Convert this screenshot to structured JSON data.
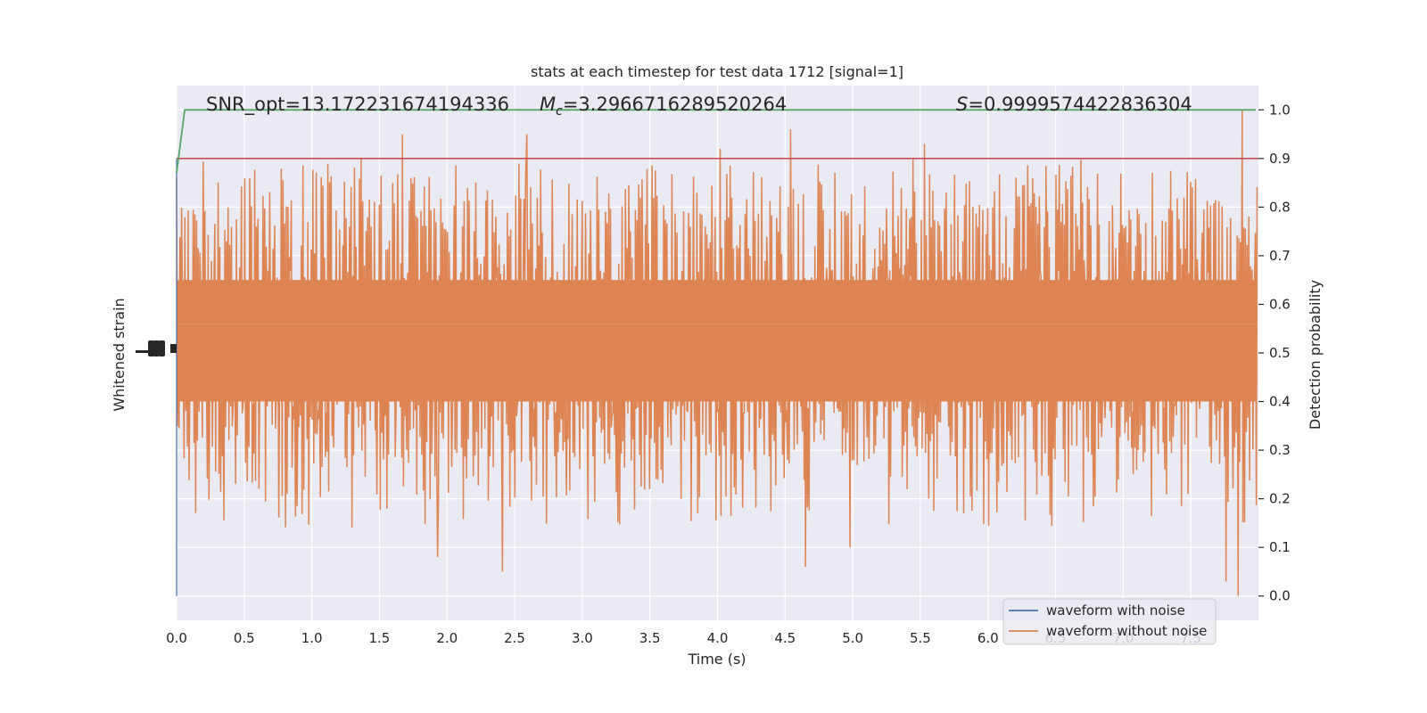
{
  "chart_data": {
    "type": "line",
    "title": "stats at each timestep for test data 1712 [signal=1]",
    "xlabel": "Time (s)",
    "ylabel_left": "Whitened strain",
    "ylabel_right": "Detection probability",
    "xlim": [
      0.0,
      8.0
    ],
    "ylim_right": [
      -0.05,
      1.05
    ],
    "x_ticks": [
      "0.0",
      "0.5",
      "1.0",
      "1.5",
      "2.0",
      "2.5",
      "3.0",
      "3.5",
      "4.0",
      "4.5",
      "5.0",
      "5.5",
      "6.0",
      "6.5",
      "7.0",
      "7.5"
    ],
    "x_tick_values": [
      0.0,
      0.5,
      1.0,
      1.5,
      2.0,
      2.5,
      3.0,
      3.5,
      4.0,
      4.5,
      5.0,
      5.5,
      6.0,
      6.5,
      7.0,
      7.5
    ],
    "y_ticks_right": [
      "0.0",
      "0.1",
      "0.2",
      "0.3",
      "0.4",
      "0.5",
      "0.6",
      "0.7",
      "0.8",
      "0.9",
      "1.0"
    ],
    "y_tick_values_right": [
      0.0,
      0.1,
      0.2,
      0.3,
      0.4,
      0.5,
      0.6,
      0.7,
      0.8,
      0.9,
      1.0
    ],
    "grid": true,
    "legend_position": "bottom-right",
    "annotations": {
      "snr": "SNR_opt=13.172231674194336",
      "mc_symbol": "M",
      "mc_sub": "c",
      "mc_value": "=3.2966716289520264",
      "s_symbol": "S",
      "s_value": "=0.9999574422836304"
    },
    "series": [
      {
        "name": "waveform with noise",
        "color": "#4c72b0",
        "role": "whitened strain (noisy)"
      },
      {
        "name": "waveform without noise",
        "color": "#dd8452",
        "role": "whitened strain (clean)"
      }
    ],
    "probability_line": {
      "color": "#55a868",
      "x": [
        0.0,
        0.06,
        7.98
      ],
      "y": [
        0.87,
        1.0,
        1.0
      ]
    },
    "threshold_line": {
      "color": "#c44e52",
      "y": 0.9
    },
    "orange_noise": {
      "center": 0.52,
      "core_low": 0.4,
      "core_high": 0.65,
      "spike_max": 1.0,
      "spike_min": 0.0,
      "peaks": [
        {
          "x": 1.67,
          "y": 0.95
        },
        {
          "x": 2.59,
          "y": 0.95
        },
        {
          "x": 4.54,
          "y": 0.96
        },
        {
          "x": 7.88,
          "y": 1.0
        },
        {
          "x": 4.02,
          "y": 0.92
        },
        {
          "x": 5.53,
          "y": 0.93
        }
      ],
      "troughs": [
        {
          "x": 2.41,
          "y": 0.05
        },
        {
          "x": 4.65,
          "y": 0.06
        },
        {
          "x": 7.85,
          "y": 0.0
        },
        {
          "x": 1.93,
          "y": 0.08
        },
        {
          "x": 7.76,
          "y": 0.03
        },
        {
          "x": 4.98,
          "y": 0.1
        }
      ]
    }
  }
}
